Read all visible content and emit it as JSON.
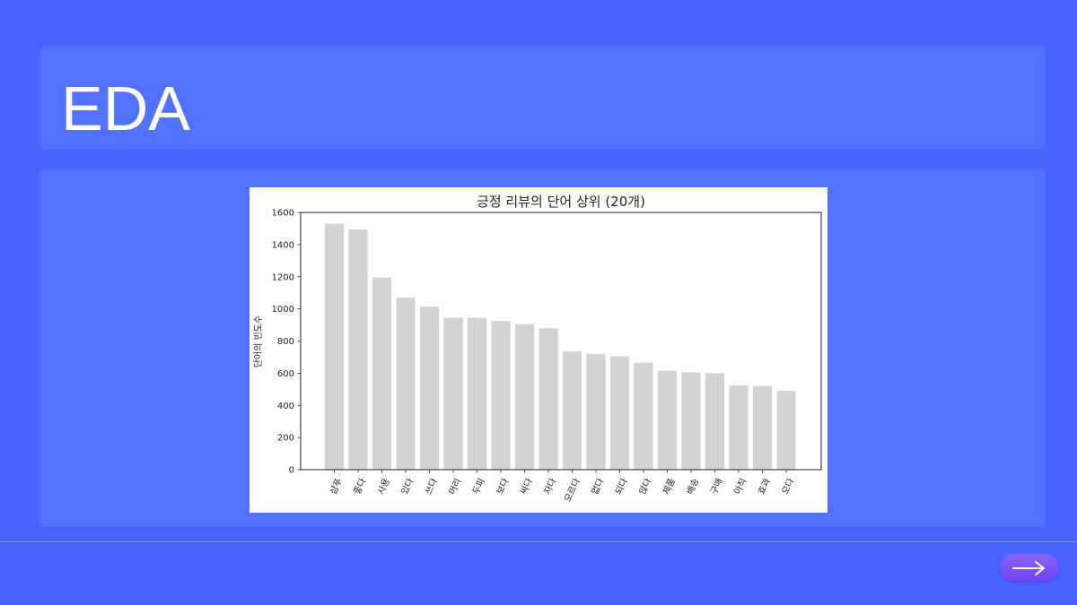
{
  "slide": {
    "title": "EDA"
  },
  "colors": {
    "background": "#4863fe",
    "panel": "#5371ff",
    "bar": "#d3d3d3",
    "button": "#7a52f7"
  },
  "icons": {
    "next": "arrow-right-icon"
  },
  "chart_data": {
    "type": "bar",
    "title": "긍정 리뷰의 단어 상위 (20개)",
    "xlabel": "",
    "ylabel": "단어의 빈도수",
    "ylim": [
      0,
      1600
    ],
    "yticks": [
      0,
      200,
      400,
      600,
      800,
      1000,
      1200,
      1400,
      1600
    ],
    "grid": false,
    "categories": [
      "샴푸",
      "좋다",
      "사용",
      "있다",
      "쓰다",
      "머리",
      "두피",
      "보다",
      "싸다",
      "자다",
      "모르다",
      "없다",
      "되다",
      "않다",
      "제품",
      "배송",
      "구매",
      "아직",
      "효과",
      "오다"
    ],
    "values": [
      1530,
      1495,
      1195,
      1070,
      1015,
      945,
      945,
      925,
      905,
      880,
      735,
      720,
      705,
      665,
      615,
      605,
      600,
      525,
      520,
      490
    ]
  }
}
